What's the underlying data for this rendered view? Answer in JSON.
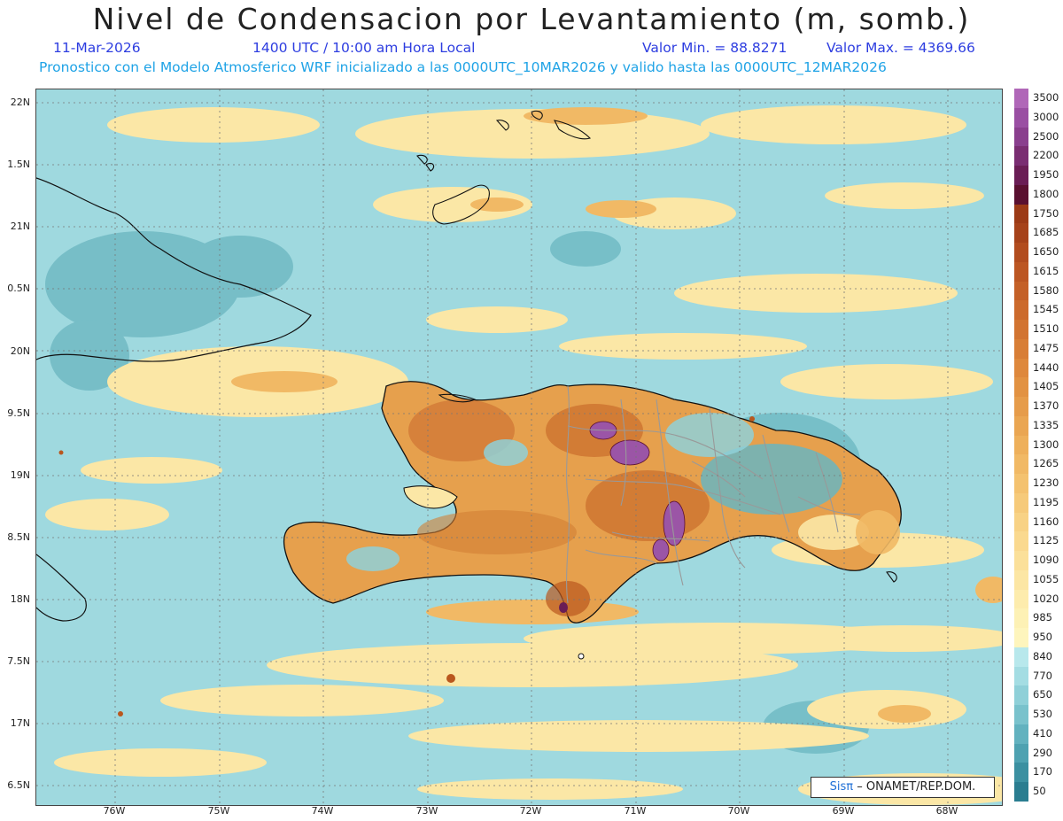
{
  "header": {
    "title": "Nivel de Condensacion por Levantamiento (m, somb.)",
    "date": "11-Mar-2026",
    "time": "1400 UTC / 10:00 am Hora Local",
    "valmin": "Valor Min. = 88.8271",
    "valmax": "Valor Max. = 4369.66",
    "forecast": "Pronostico con el Modelo Atmosferico WRF inicializado a las 0000UTC_10MAR2026 y valido hasta las  0000UTC_12MAR2026"
  },
  "axes": {
    "lat_labels": [
      "22N",
      "1.5N",
      "21N",
      "0.5N",
      "20N",
      "9.5N",
      "19N",
      "8.5N",
      "18N",
      "7.5N",
      "17N",
      "6.5N"
    ],
    "lon_labels": [
      "76W",
      "75W",
      "74W",
      "73W",
      "72W",
      "71W",
      "70W",
      "69W",
      "68W"
    ]
  },
  "colorbar": {
    "labels": [
      "3500",
      "3000",
      "2500",
      "2200",
      "1950",
      "1800",
      "1750",
      "1685",
      "1650",
      "1615",
      "1580",
      "1545",
      "1510",
      "1475",
      "1440",
      "1405",
      "1370",
      "1335",
      "1300",
      "1265",
      "1230",
      "1195",
      "1160",
      "1125",
      "1090",
      "1055",
      "1020",
      "985",
      "950",
      "840",
      "770",
      "650",
      "530",
      "410",
      "290",
      "170",
      "50"
    ],
    "colors": [
      "#b067b8",
      "#9a4fa3",
      "#8a3f8e",
      "#7a2d72",
      "#6a1d55",
      "#5a1030",
      "#9c3a16",
      "#a6421a",
      "#b24c1e",
      "#bc5622",
      "#c46027",
      "#cc6a2c",
      "#d27431",
      "#d87e36",
      "#de883c",
      "#e29242",
      "#e69c4a",
      "#eaa652",
      "#eeb05b",
      "#f1b965",
      "#f4c26f",
      "#f6ca7a",
      "#f8d285",
      "#fad98f",
      "#fbe09a",
      "#fce6a4",
      "#fdecad",
      "#fdf1b5",
      "#fef5bd",
      "#b8e8ec",
      "#a4dde3",
      "#8fd0d8",
      "#79c2cc",
      "#62b2bf",
      "#4ea2b1",
      "#3b90a1",
      "#2a7d90"
    ]
  },
  "credit": {
    "sis": "Sisπ",
    "text": "– ONAMET/REP.DOM."
  },
  "palette": {
    "sea": "#9fd9df",
    "sea_dark": "#6ab5c0",
    "cloud_yellow": "#fbe7a6",
    "land_orange": "#e49a45",
    "land_dark": "#b9571e",
    "peak_purple": "#9b55a6",
    "coast": "#111111",
    "province": "#999999",
    "grid": "#777777"
  }
}
